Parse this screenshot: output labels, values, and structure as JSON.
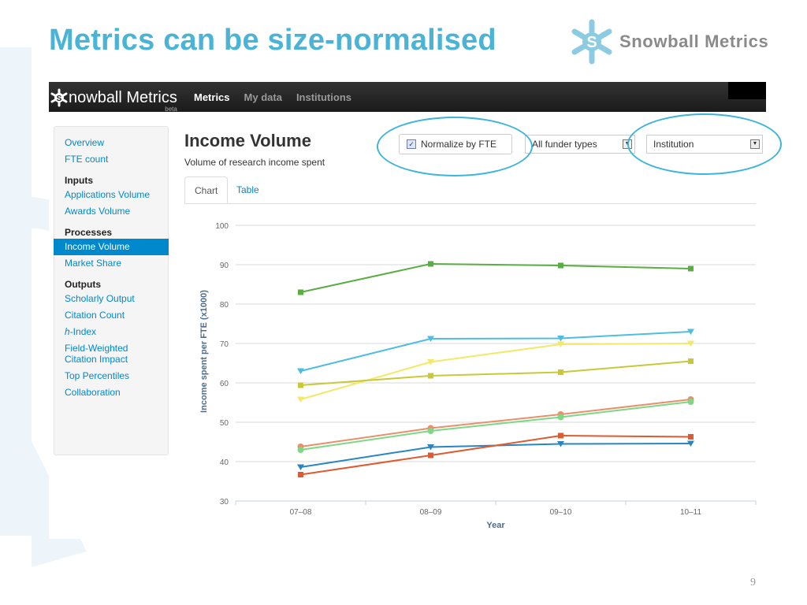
{
  "slide": {
    "title": "Metrics can be size-normalised",
    "logo_text": "Snowball Metrics",
    "page_number": "9"
  },
  "app": {
    "brand": "nowball Metrics",
    "brand_badge": "beta",
    "nav": [
      {
        "label": "Metrics",
        "active": true
      },
      {
        "label": "My data",
        "active": false
      },
      {
        "label": "Institutions",
        "active": false
      }
    ],
    "sidebar": {
      "overview": "Overview",
      "fte_count": "FTE count",
      "inputs_heading": "Inputs",
      "applications_volume": "Applications Volume",
      "awards_volume": "Awards Volume",
      "processes_heading": "Processes",
      "income_volume": "Income Volume",
      "market_share": "Market Share",
      "outputs_heading": "Outputs",
      "scholarly_output": "Scholarly Output",
      "citation_count": "Citation Count",
      "h_index_prefix": "h",
      "h_index_suffix": "-Index",
      "fwci_line1": "Field-Weighted",
      "fwci_line2": "Citation Impact",
      "top_percentiles": "Top Percentiles",
      "collaboration": "Collaboration"
    },
    "main": {
      "title": "Income Volume",
      "subtitle": "Volume of research income spent",
      "normalize_label": "Normalize by FTE",
      "normalize_checked": true,
      "funder_select": "All funder types",
      "institution_select": "Institution",
      "tabs": [
        "Chart",
        "Table"
      ]
    },
    "highlight_color": "#3cb4dc"
  },
  "chart_data": {
    "type": "line",
    "categories": [
      "07–08",
      "08–09",
      "09–10",
      "10–11"
    ],
    "xlabel": "Year",
    "ylabel": "Income spent per FTE (x1000)",
    "ylim": [
      30,
      100
    ],
    "yticks": [
      30,
      40,
      50,
      60,
      70,
      80,
      90,
      100
    ],
    "grid": true,
    "legend": "none",
    "series": [
      {
        "color": "#5aad42",
        "marker": "square",
        "values": [
          83,
          90.2,
          89.8,
          89
        ]
      },
      {
        "color": "#4fbde0",
        "marker": "triangle-down",
        "values": [
          63,
          71.2,
          71.3,
          73
        ]
      },
      {
        "color": "#f3e86a",
        "marker": "triangle-down",
        "values": [
          55.8,
          65.3,
          69.8,
          70
        ]
      },
      {
        "color": "#c9c839",
        "marker": "square",
        "values": [
          59.4,
          61.8,
          62.7,
          65.5
        ]
      },
      {
        "color": "#e8906a",
        "marker": "circle",
        "values": [
          43.8,
          48.5,
          52,
          55.8
        ]
      },
      {
        "color": "#7ed687",
        "marker": "circle",
        "values": [
          43,
          47.8,
          51.3,
          55.2
        ]
      },
      {
        "color": "#2a86c0",
        "marker": "triangle-down",
        "values": [
          38.6,
          43.7,
          44.5,
          44.6
        ]
      },
      {
        "color": "#dd5b30",
        "marker": "square",
        "values": [
          36.7,
          41.6,
          46.6,
          46.3
        ]
      }
    ]
  }
}
